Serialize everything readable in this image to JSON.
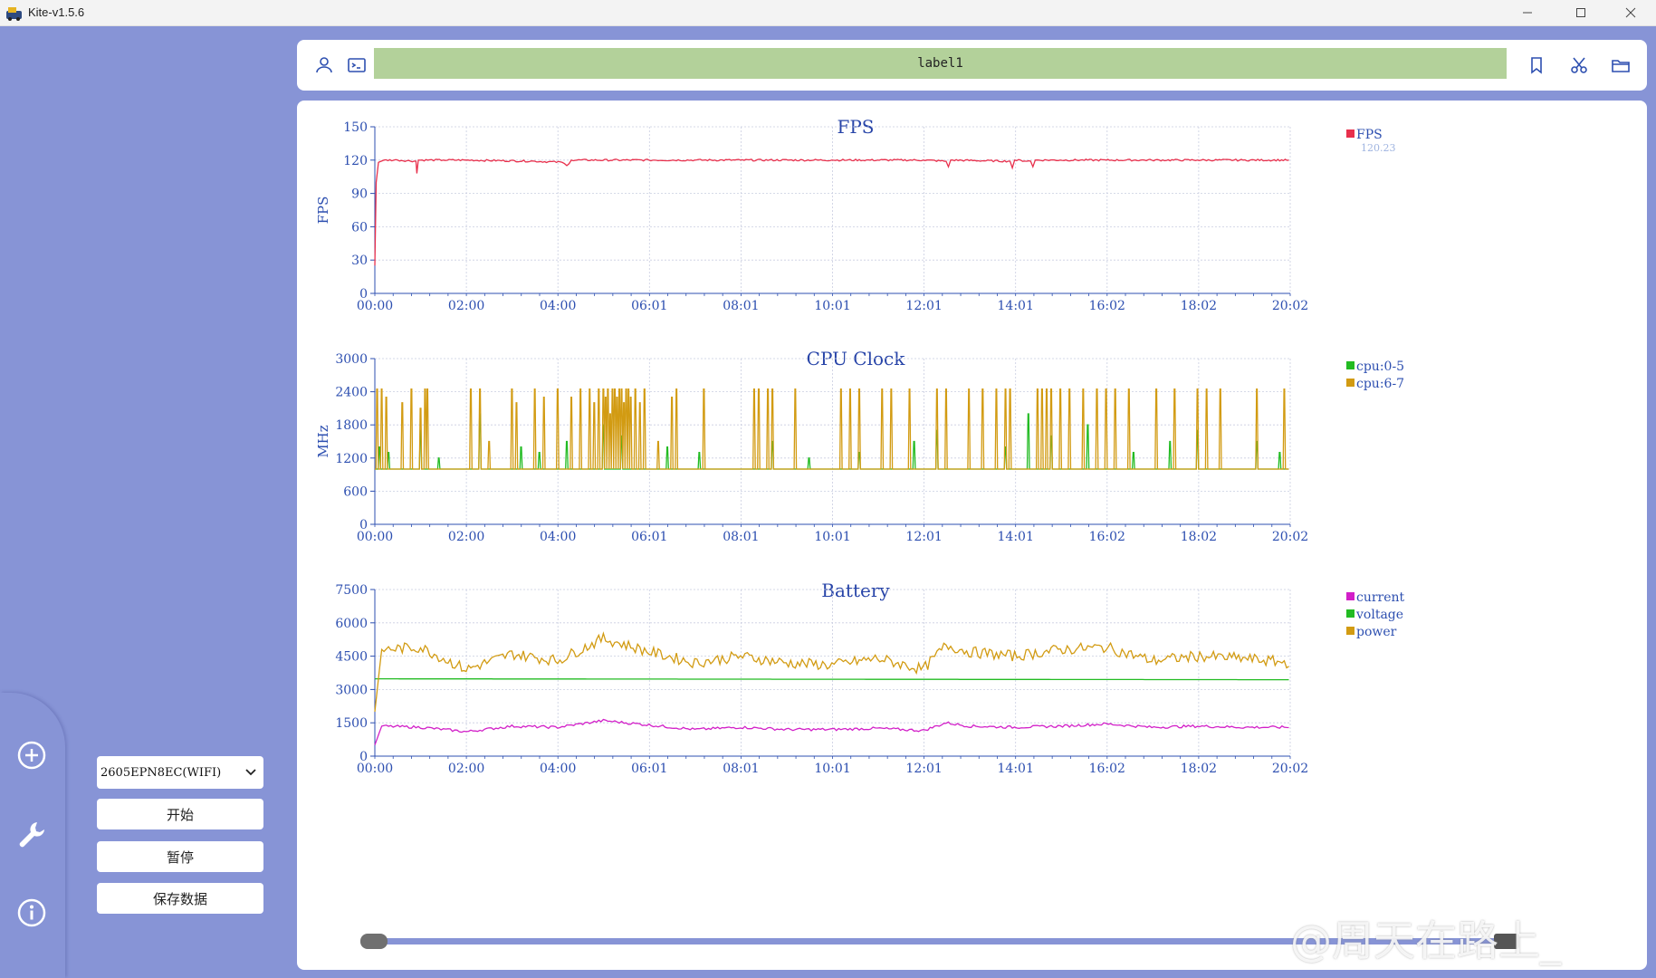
{
  "window": {
    "title": "Kite-v1.5.6",
    "controls": [
      "minimize-icon",
      "maximize-icon",
      "close-icon"
    ]
  },
  "topbar": {
    "label": "label1",
    "left_icons": [
      "user-icon",
      "terminal-icon"
    ],
    "right_icons": [
      "bookmark-icon",
      "scissors-icon",
      "folder-icon"
    ],
    "label_color": "#b3d19a"
  },
  "sidebar": {
    "icons": [
      "add-circle-icon",
      "wrench-icon",
      "info-icon"
    ]
  },
  "controls": {
    "device": "2605EPN8EC(WIFI)",
    "start_label": "开始",
    "pause_label": "暂停",
    "save_label": "保存数据"
  },
  "watermark": "@周天在路上_",
  "colors": {
    "background": "#8794d6",
    "fps": "#e8304c",
    "cpu_0_5": "#22bb22",
    "cpu_6_7": "#d29b12",
    "current": "#d21fc8",
    "voltage": "#22bb22",
    "power": "#d29b12",
    "axis_text": "#2d4fb0"
  },
  "chart_data": [
    {
      "type": "line",
      "title": "FPS",
      "xlabel": "",
      "ylabel": "FPS",
      "x_ticks": [
        "00:00",
        "02:00",
        "04:00",
        "06:01",
        "08:01",
        "10:01",
        "12:01",
        "14:01",
        "16:02",
        "18:02",
        "20:02"
      ],
      "y_ticks": [
        0,
        30,
        60,
        90,
        120,
        150
      ],
      "ylim": [
        0,
        150
      ],
      "xlim_minutes": [
        0,
        20.03
      ],
      "grid": true,
      "legend_position": "right",
      "series": [
        {
          "name": "FPS",
          "current_value": "120.23",
          "color": "#e8304c",
          "points": [
            [
              0,
              25
            ],
            [
              0.03,
              100
            ],
            [
              0.08,
              118
            ],
            [
              0.2,
              120
            ],
            [
              0.5,
              120
            ],
            [
              0.9,
              119
            ],
            [
              0.92,
              108
            ],
            [
              0.95,
              120
            ],
            [
              1.5,
              120
            ],
            [
              2.0,
              120
            ],
            [
              3.5,
              119
            ],
            [
              4.1,
              118
            ],
            [
              4.2,
              115
            ],
            [
              4.3,
              120
            ],
            [
              6.0,
              120
            ],
            [
              7.0,
              120
            ],
            [
              8.0,
              120
            ],
            [
              10.0,
              120
            ],
            [
              12.0,
              120
            ],
            [
              12.5,
              119
            ],
            [
              12.55,
              114
            ],
            [
              12.6,
              120
            ],
            [
              13.9,
              119
            ],
            [
              13.95,
              113
            ],
            [
              14.0,
              120
            ],
            [
              14.35,
              119
            ],
            [
              14.4,
              114
            ],
            [
              14.45,
              120
            ],
            [
              15.0,
              120
            ],
            [
              16.0,
              120
            ],
            [
              17.0,
              120
            ],
            [
              18.0,
              120
            ],
            [
              19.0,
              120
            ],
            [
              20.0,
              120
            ]
          ]
        }
      ]
    },
    {
      "type": "line",
      "title": "CPU Clock",
      "xlabel": "",
      "ylabel": "MHz",
      "x_ticks": [
        "00:00",
        "02:00",
        "04:00",
        "06:01",
        "08:01",
        "10:01",
        "12:01",
        "14:01",
        "16:02",
        "18:02",
        "20:02"
      ],
      "y_ticks": [
        0,
        600,
        1200,
        1800,
        2400,
        3000
      ],
      "ylim": [
        0,
        3000
      ],
      "xlim_minutes": [
        0,
        20.03
      ],
      "grid": true,
      "legend_position": "right",
      "series": [
        {
          "name": "cpu:0-5",
          "color": "#22bb22",
          "baseline": 1000,
          "spikes": [
            [
              0.1,
              1400
            ],
            [
              0.3,
              1300
            ],
            [
              1.0,
              1700
            ],
            [
              1.4,
              1200
            ],
            [
              2.3,
              2000
            ],
            [
              3.2,
              1400
            ],
            [
              3.6,
              1300
            ],
            [
              4.2,
              1500
            ],
            [
              5.0,
              1800
            ],
            [
              5.4,
              1600
            ],
            [
              6.4,
              1400
            ],
            [
              7.1,
              1300
            ],
            [
              8.7,
              1500
            ],
            [
              9.5,
              1200
            ],
            [
              10.6,
              1300
            ],
            [
              11.8,
              1500
            ],
            [
              12.3,
              1700
            ],
            [
              13.8,
              1400
            ],
            [
              14.3,
              2000
            ],
            [
              14.8,
              1600
            ],
            [
              15.6,
              1800
            ],
            [
              16.6,
              1300
            ],
            [
              17.4,
              1500
            ],
            [
              18.0,
              1700
            ],
            [
              19.3,
              1500
            ],
            [
              19.8,
              1300
            ]
          ]
        },
        {
          "name": "cpu:6-7",
          "color": "#d29b12",
          "baseline": 1000,
          "spikes": [
            [
              0.05,
              2450
            ],
            [
              0.15,
              2450
            ],
            [
              0.25,
              2300
            ],
            [
              0.6,
              2200
            ],
            [
              0.8,
              2450
            ],
            [
              1.0,
              2100
            ],
            [
              1.1,
              2450
            ],
            [
              1.15,
              2450
            ],
            [
              2.1,
              2450
            ],
            [
              2.3,
              2450
            ],
            [
              2.5,
              1500
            ],
            [
              3.0,
              2450
            ],
            [
              3.1,
              2200
            ],
            [
              3.5,
              2450
            ],
            [
              3.7,
              2300
            ],
            [
              4.0,
              2450
            ],
            [
              4.3,
              2300
            ],
            [
              4.5,
              2450
            ],
            [
              4.7,
              2450
            ],
            [
              4.8,
              2200
            ],
            [
              4.9,
              2450
            ],
            [
              5.0,
              2450
            ],
            [
              5.05,
              2300
            ],
            [
              5.1,
              2450
            ],
            [
              5.15,
              2000
            ],
            [
              5.2,
              2450
            ],
            [
              5.25,
              2450
            ],
            [
              5.3,
              2300
            ],
            [
              5.35,
              2450
            ],
            [
              5.4,
              2450
            ],
            [
              5.45,
              2200
            ],
            [
              5.5,
              2450
            ],
            [
              5.55,
              2450
            ],
            [
              5.6,
              2300
            ],
            [
              5.7,
              2450
            ],
            [
              5.8,
              2200
            ],
            [
              5.9,
              2450
            ],
            [
              6.2,
              1500
            ],
            [
              6.5,
              2300
            ],
            [
              6.6,
              2450
            ],
            [
              7.2,
              2450
            ],
            [
              8.3,
              2450
            ],
            [
              8.4,
              2450
            ],
            [
              8.6,
              2450
            ],
            [
              8.7,
              2450
            ],
            [
              9.2,
              2450
            ],
            [
              10.2,
              2450
            ],
            [
              10.4,
              2450
            ],
            [
              10.6,
              2450
            ],
            [
              11.1,
              2450
            ],
            [
              11.3,
              2450
            ],
            [
              11.7,
              2450
            ],
            [
              12.3,
              2450
            ],
            [
              12.5,
              2450
            ],
            [
              13.0,
              2450
            ],
            [
              13.3,
              2450
            ],
            [
              13.6,
              2450
            ],
            [
              13.8,
              2450
            ],
            [
              13.9,
              2450
            ],
            [
              14.5,
              2450
            ],
            [
              14.6,
              2450
            ],
            [
              14.7,
              2450
            ],
            [
              14.8,
              2450
            ],
            [
              15.0,
              2450
            ],
            [
              15.2,
              2450
            ],
            [
              15.5,
              2450
            ],
            [
              15.8,
              2450
            ],
            [
              16.0,
              2450
            ],
            [
              16.2,
              2450
            ],
            [
              16.5,
              2450
            ],
            [
              17.1,
              2450
            ],
            [
              17.5,
              2450
            ],
            [
              18.0,
              2450
            ],
            [
              18.2,
              2450
            ],
            [
              18.5,
              2450
            ],
            [
              19.3,
              2450
            ],
            [
              19.9,
              2450
            ]
          ]
        }
      ]
    },
    {
      "type": "line",
      "title": "Battery",
      "xlabel": "",
      "ylabel": "",
      "x_ticks": [
        "00:00",
        "02:00",
        "04:00",
        "06:01",
        "08:01",
        "10:01",
        "12:01",
        "14:01",
        "16:02",
        "18:02",
        "20:02"
      ],
      "y_ticks": [
        0,
        1500,
        3000,
        4500,
        6000,
        7500
      ],
      "ylim": [
        0,
        7500
      ],
      "xlim_minutes": [
        0,
        20.03
      ],
      "grid": true,
      "legend_position": "right",
      "series": [
        {
          "name": "current",
          "color": "#d21fc8",
          "points": [
            [
              0,
              500
            ],
            [
              0.15,
              1350
            ],
            [
              1.0,
              1300
            ],
            [
              2.0,
              1100
            ],
            [
              3.0,
              1350
            ],
            [
              4.0,
              1300
            ],
            [
              5.0,
              1600
            ],
            [
              6.0,
              1400
            ],
            [
              7.0,
              1200
            ],
            [
              8.0,
              1300
            ],
            [
              9.0,
              1200
            ],
            [
              10.0,
              1200
            ],
            [
              11.0,
              1250
            ],
            [
              12.0,
              1150
            ],
            [
              12.5,
              1500
            ],
            [
              13.0,
              1350
            ],
            [
              14.0,
              1300
            ],
            [
              15.0,
              1350
            ],
            [
              16.0,
              1450
            ],
            [
              17.0,
              1300
            ],
            [
              18.0,
              1350
            ],
            [
              19.0,
              1300
            ],
            [
              20.0,
              1300
            ]
          ]
        },
        {
          "name": "voltage",
          "color": "#22bb22",
          "points": [
            [
              0,
              3480
            ],
            [
              5,
              3470
            ],
            [
              10,
              3460
            ],
            [
              15,
              3450
            ],
            [
              20,
              3440
            ]
          ]
        },
        {
          "name": "power",
          "color": "#d29b12",
          "points": [
            [
              0,
              2000
            ],
            [
              0.15,
              4800
            ],
            [
              1.0,
              4900
            ],
            [
              2.0,
              3900
            ],
            [
              3.0,
              4600
            ],
            [
              4.0,
              4300
            ],
            [
              5.0,
              5300
            ],
            [
              6.0,
              4700
            ],
            [
              7.0,
              4200
            ],
            [
              8.0,
              4500
            ],
            [
              9.0,
              4200
            ],
            [
              10.0,
              4100
            ],
            [
              11.0,
              4400
            ],
            [
              12.0,
              3900
            ],
            [
              12.5,
              5000
            ],
            [
              13.0,
              4700
            ],
            [
              14.0,
              4500
            ],
            [
              15.0,
              4800
            ],
            [
              16.0,
              4900
            ],
            [
              17.0,
              4300
            ],
            [
              18.0,
              4500
            ],
            [
              19.0,
              4400
            ],
            [
              20.0,
              4200
            ]
          ]
        }
      ]
    }
  ]
}
